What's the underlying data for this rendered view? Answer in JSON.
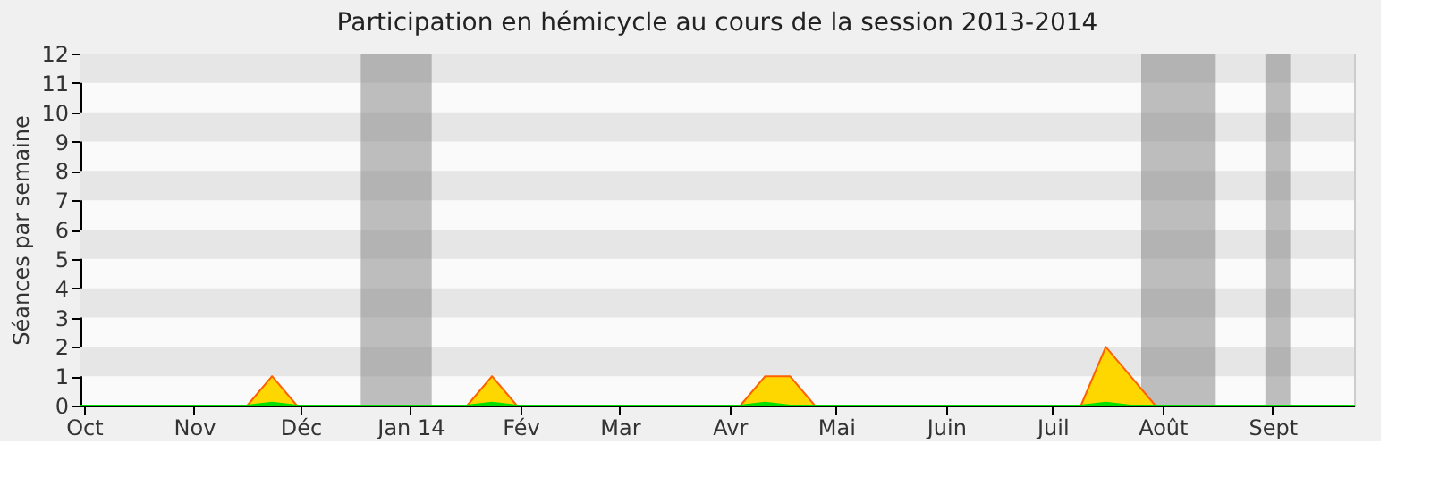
{
  "chart_data": {
    "type": "area",
    "title": "Participation en hémicycle au cours de la session 2013-2014",
    "ylabel": "Séances par semaine",
    "xlim": [
      "2013-09-30",
      "2014-09-24"
    ],
    "ylim": [
      0,
      12
    ],
    "yticks": [
      0,
      1,
      2,
      3,
      4,
      5,
      6,
      7,
      8,
      9,
      10,
      11,
      12
    ],
    "xticks": [
      {
        "value": "2013-10-01",
        "label": "Oct"
      },
      {
        "value": "2013-11-01",
        "label": "Nov"
      },
      {
        "value": "2013-12-01",
        "label": "Déc"
      },
      {
        "value": "2014-01-01",
        "label": "Jan 14"
      },
      {
        "value": "2014-02-01",
        "label": "Fév"
      },
      {
        "value": "2014-03-01",
        "label": "Mar"
      },
      {
        "value": "2014-04-01",
        "label": "Avr"
      },
      {
        "value": "2014-05-01",
        "label": "Mai"
      },
      {
        "value": "2014-06-01",
        "label": "Juin"
      },
      {
        "value": "2014-07-01",
        "label": "Juil"
      },
      {
        "value": "2014-08-01",
        "label": "Août"
      },
      {
        "value": "2014-09-01",
        "label": "Sept"
      }
    ],
    "bands": [
      {
        "axis": "y",
        "from": 1,
        "to": 2,
        "color": "#e6e6e6"
      },
      {
        "axis": "y",
        "from": 3,
        "to": 4,
        "color": "#e6e6e6"
      },
      {
        "axis": "y",
        "from": 5,
        "to": 6,
        "color": "#e6e6e6"
      },
      {
        "axis": "y",
        "from": 7,
        "to": 8,
        "color": "#e6e6e6"
      },
      {
        "axis": "y",
        "from": 9,
        "to": 10,
        "color": "#e6e6e6"
      },
      {
        "axis": "y",
        "from": 11,
        "to": 12,
        "color": "#e6e6e6"
      },
      {
        "axis": "x",
        "from": "2013-12-18",
        "to": "2014-01-07",
        "color": "#808080"
      },
      {
        "axis": "x",
        "from": "2014-07-26",
        "to": "2014-08-16",
        "color": "#808080"
      },
      {
        "axis": "x",
        "from": "2014-08-30",
        "to": "2014-09-06",
        "color": "#808080"
      }
    ],
    "series": [
      {
        "color": "#ffd700",
        "x": [
          "2013-09-30",
          "2013-11-16",
          "2013-11-23",
          "2013-11-30",
          "2014-01-17",
          "2014-01-24",
          "2014-01-31",
          "2014-04-04",
          "2014-04-11",
          "2014-04-18",
          "2014-04-25",
          "2014-07-09",
          "2014-07-16",
          "2014-07-23",
          "2014-07-30",
          "2014-09-24"
        ],
        "values": [
          0,
          0,
          1,
          0,
          0,
          1,
          0,
          0,
          1,
          1,
          0,
          0,
          2,
          1,
          0,
          0
        ]
      },
      {
        "color": "#00e000",
        "x": [
          "2013-09-30",
          "2013-11-16",
          "2013-11-23",
          "2013-11-30",
          "2014-01-17",
          "2014-01-24",
          "2014-01-31",
          "2014-04-04",
          "2014-04-11",
          "2014-04-18",
          "2014-04-25",
          "2014-07-09",
          "2014-07-16",
          "2014-07-23",
          "2014-07-30",
          "2014-09-24"
        ],
        "values": [
          0,
          0,
          0.1,
          0,
          0,
          0.1,
          0,
          0,
          0.1,
          0,
          0,
          0,
          0.1,
          0,
          0,
          0
        ]
      }
    ]
  }
}
